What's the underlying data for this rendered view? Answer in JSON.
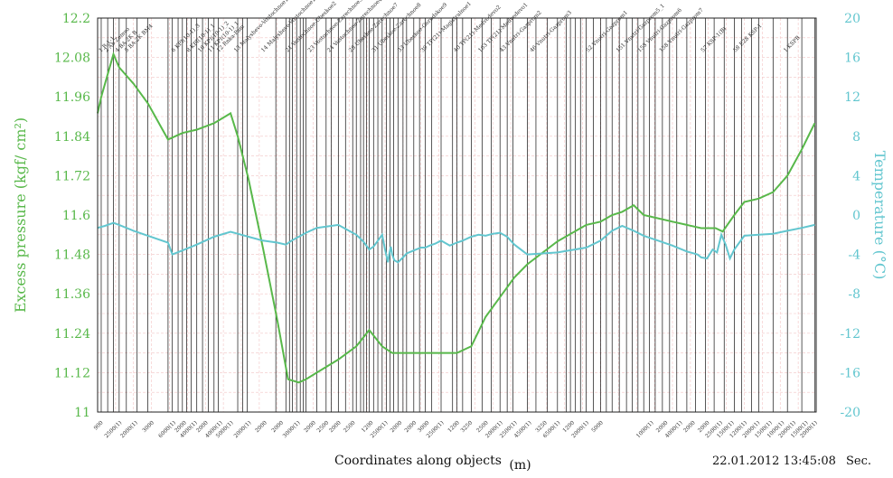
{
  "chart_data": {
    "type": "line",
    "xlabel_main": "Coordinates along objects",
    "xlabel_unit": "(m)",
    "ylabel_left": "Excess pressure (kgf/ cm²)",
    "ylabel_right": "Temperature (°C)",
    "ylim_left": [
      11,
      12.2
    ],
    "ylim_right": [
      -20,
      20
    ],
    "yticks_left": [
      "11",
      "11.12",
      "11.24",
      "11.36",
      "11.48",
      "11.6",
      "11.72",
      "11.84",
      "11.96",
      "12.08",
      "12.2"
    ],
    "yticks_right": [
      "-20",
      "-16",
      "-12",
      "-8",
      "-4",
      "0",
      "4",
      "8",
      "12",
      "16",
      "20"
    ],
    "x_scale": "object-sequence coordinate (0-1000)",
    "grid": true,
    "timestamp": "22.01.2012 13:45:08",
    "time_unit": "Sec.",
    "object_labels": [
      {
        "x": 2,
        "t": "1 R-1-1"
      },
      {
        "x": 10,
        "t": "2 Ab Zemvo"
      },
      {
        "x": 25,
        "t": "4 BA-2K B"
      },
      {
        "x": 38,
        "t": "5 BA-2K BM4"
      },
      {
        "x": 103,
        "t": "6 KPI(10-1)_3"
      },
      {
        "x": 124,
        "t": "8 KPI(10-1)_1"
      },
      {
        "x": 140,
        "t": "10 KPI(10-1)_2"
      },
      {
        "x": 154,
        "t": "11 KPI(10-1)_1"
      },
      {
        "x": 166,
        "t": "12 Rnka-Pam"
      },
      {
        "x": 190,
        "t": "13 Malyshevo-Vostochnoe1"
      },
      {
        "x": 228,
        "t": "14 Malyshevo-Vostochnoe1"
      },
      {
        "x": 262,
        "t": "21 Vostochnoe-Ubeskoe2"
      },
      {
        "x": 293,
        "t": "23 Vostochnoe-Zarechnoe3"
      },
      {
        "x": 320,
        "t": "24 Vostochnoe-Zarechnoe4"
      },
      {
        "x": 350,
        "t": "28 Ubeskoe-Zarechnoe7"
      },
      {
        "x": 382,
        "t": "31 Ubeskoe-Zarechnoe8"
      },
      {
        "x": 418,
        "t": "33 Ubeskoe-Gorodskoe9"
      },
      {
        "x": 450,
        "t": "39 TP(21)-Magistralnoe1"
      },
      {
        "x": 496,
        "t": "40 TP(21)-Medvedevo2"
      },
      {
        "x": 530,
        "t": "163 TP(21)-Medvedevo1"
      },
      {
        "x": 560,
        "t": "43 Vnutri-Gazprom2"
      },
      {
        "x": 602,
        "t": "46 Vnutri-Gazprom3"
      },
      {
        "x": 680,
        "t": "52 Vnutri-Gazprom1"
      },
      {
        "x": 722,
        "t": "151 Vnutri-Gazprom5_1"
      },
      {
        "x": 752,
        "t": "153 Vnutri-Gazprom6"
      },
      {
        "x": 782,
        "t": "158 Vnutri-Gazprom7"
      },
      {
        "x": 840,
        "t": "57 KSP-1(B)"
      },
      {
        "x": 885,
        "t": "58 E28 KSP-1"
      },
      {
        "x": 955,
        "t": "1 KSPB"
      }
    ],
    "segment_lengths": [
      {
        "x": 4,
        "t": "900"
      },
      {
        "x": 30,
        "t": "2500(1)"
      },
      {
        "x": 52,
        "t": "2000(1)"
      },
      {
        "x": 75,
        "t": "3000"
      },
      {
        "x": 105,
        "t": "6000(1)"
      },
      {
        "x": 120,
        "t": "2000"
      },
      {
        "x": 135,
        "t": "4000(1)"
      },
      {
        "x": 150,
        "t": "2000"
      },
      {
        "x": 170,
        "t": "4000(1)"
      },
      {
        "x": 185,
        "t": "5000(1)"
      },
      {
        "x": 210,
        "t": "2000(1)"
      },
      {
        "x": 232,
        "t": "2000"
      },
      {
        "x": 255,
        "t": "2000"
      },
      {
        "x": 278,
        "t": "3000(1)"
      },
      {
        "x": 300,
        "t": "2000"
      },
      {
        "x": 318,
        "t": "2500"
      },
      {
        "x": 335,
        "t": "2000"
      },
      {
        "x": 355,
        "t": "2500"
      },
      {
        "x": 380,
        "t": "1200"
      },
      {
        "x": 400,
        "t": "2500(1)"
      },
      {
        "x": 420,
        "t": "2000"
      },
      {
        "x": 440,
        "t": "2000"
      },
      {
        "x": 458,
        "t": "3000"
      },
      {
        "x": 478,
        "t": "2500(1)"
      },
      {
        "x": 500,
        "t": "1200"
      },
      {
        "x": 518,
        "t": "3250"
      },
      {
        "x": 540,
        "t": "2500"
      },
      {
        "x": 560,
        "t": "2000(1)"
      },
      {
        "x": 580,
        "t": "2500(1)"
      },
      {
        "x": 600,
        "t": "4500(1)"
      },
      {
        "x": 622,
        "t": "3250"
      },
      {
        "x": 640,
        "t": "6500(1)"
      },
      {
        "x": 660,
        "t": "1200"
      },
      {
        "x": 680,
        "t": "2000(1)"
      },
      {
        "x": 700,
        "t": "5000"
      },
      {
        "x": 770,
        "t": "1000(1)"
      },
      {
        "x": 790,
        "t": "2000"
      },
      {
        "x": 810,
        "t": "4000(1)"
      },
      {
        "x": 828,
        "t": "2000"
      },
      {
        "x": 848,
        "t": "2000"
      },
      {
        "x": 866,
        "t": "2500(1)"
      },
      {
        "x": 882,
        "t": "1500(1)"
      },
      {
        "x": 900,
        "t": "1200(1)"
      },
      {
        "x": 918,
        "t": "2000(1)"
      },
      {
        "x": 935,
        "t": "1500(1)"
      },
      {
        "x": 952,
        "t": "1000(1)"
      },
      {
        "x": 968,
        "t": "2000(1)"
      },
      {
        "x": 985,
        "t": "1500(1)"
      },
      {
        "x": 998,
        "t": "2000(1)"
      }
    ],
    "object_boundaries": [
      0,
      5,
      14,
      22,
      30,
      40,
      55,
      70,
      98,
      104,
      112,
      118,
      124,
      130,
      138,
      146,
      154,
      162,
      168,
      195,
      202,
      208,
      248,
      262,
      267,
      271,
      277,
      282,
      286,
      290,
      305,
      318,
      325,
      335,
      345,
      355,
      360,
      366,
      370,
      374,
      378,
      384,
      390,
      396,
      402,
      407,
      412,
      418,
      425,
      430,
      440,
      448,
      456,
      465,
      478,
      494,
      500,
      508,
      520,
      535,
      548,
      560,
      570,
      578,
      598,
      610,
      626,
      640,
      652,
      658,
      665,
      672,
      680,
      690,
      700,
      708,
      716,
      726,
      736,
      744,
      752,
      760,
      768,
      776,
      786,
      796,
      806,
      820,
      832,
      846,
      858,
      872,
      886,
      896,
      910,
      920,
      940,
      960,
      980,
      998
    ],
    "series": [
      {
        "name": "Excess pressure",
        "axis": "left",
        "color": "#58b84a",
        "x": [
          0,
          5,
          22,
          30,
          50,
          70,
          98,
          118,
          138,
          162,
          185,
          195,
          210,
          230,
          250,
          265,
          280,
          290,
          305,
          335,
          360,
          378,
          396,
          410,
          425,
          435,
          460,
          480,
          500,
          520,
          540,
          560,
          580,
          598,
          640,
          680,
          700,
          716,
          730,
          746,
          760,
          780,
          800,
          820,
          840,
          860,
          870,
          886,
          900,
          920,
          940,
          960,
          980,
          998
        ],
        "values": [
          11.91,
          11.96,
          12.09,
          12.05,
          12.0,
          11.94,
          11.83,
          11.85,
          11.86,
          11.88,
          11.91,
          11.84,
          11.71,
          11.5,
          11.28,
          11.1,
          11.09,
          11.1,
          11.12,
          11.16,
          11.2,
          11.25,
          11.2,
          11.18,
          11.18,
          11.18,
          11.18,
          11.18,
          11.18,
          11.2,
          11.29,
          11.35,
          11.41,
          11.45,
          11.52,
          11.57,
          11.58,
          11.6,
          11.61,
          11.63,
          11.6,
          11.59,
          11.58,
          11.57,
          11.56,
          11.56,
          11.55,
          11.6,
          11.64,
          11.65,
          11.67,
          11.72,
          11.8,
          11.88
        ]
      },
      {
        "name": "Temperature",
        "axis": "right",
        "color": "#62c6cf",
        "x": [
          0,
          10,
          22,
          30,
          50,
          70,
          98,
          104,
          118,
          138,
          162,
          185,
          195,
          210,
          230,
          250,
          262,
          270,
          280,
          290,
          305,
          335,
          360,
          370,
          378,
          384,
          396,
          400,
          404,
          406,
          408,
          410,
          413,
          418,
          425,
          430,
          440,
          450,
          456,
          462,
          470,
          478,
          490,
          500,
          508,
          520,
          530,
          540,
          550,
          560,
          570,
          580,
          598,
          640,
          680,
          700,
          716,
          730,
          746,
          760,
          780,
          800,
          820,
          835,
          840,
          848,
          856,
          862,
          868,
          874,
          880,
          886,
          900,
          920,
          940,
          960,
          980,
          998
        ],
        "values": [
          -1.3,
          -1.1,
          -0.8,
          -1.0,
          -1.6,
          -2.1,
          -2.8,
          -4.0,
          -3.6,
          -3.0,
          -2.2,
          -1.7,
          -1.9,
          -2.2,
          -2.6,
          -2.8,
          -3.0,
          -2.6,
          -2.2,
          -1.8,
          -1.3,
          -1.0,
          -2.0,
          -2.7,
          -3.5,
          -3.2,
          -2.0,
          -3.5,
          -4.8,
          -3.9,
          -3.2,
          -4.0,
          -4.6,
          -4.8,
          -4.3,
          -3.9,
          -3.6,
          -3.3,
          -3.3,
          -3.1,
          -2.9,
          -2.6,
          -3.1,
          -2.8,
          -2.6,
          -2.2,
          -2.0,
          -2.1,
          -1.9,
          -1.8,
          -2.2,
          -3.0,
          -4.0,
          -3.8,
          -3.3,
          -2.6,
          -1.6,
          -1.1,
          -1.6,
          -2.1,
          -2.6,
          -3.1,
          -3.7,
          -4.0,
          -4.3,
          -4.4,
          -3.5,
          -3.8,
          -2.0,
          -3.0,
          -4.4,
          -3.5,
          -2.1,
          -2.0,
          -1.9,
          -1.6,
          -1.3,
          -1.0
        ]
      }
    ]
  }
}
